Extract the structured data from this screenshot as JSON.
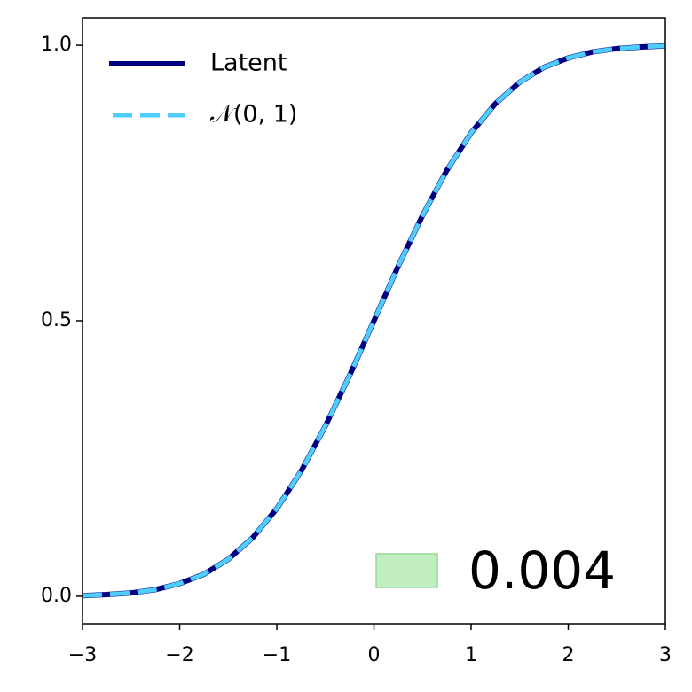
{
  "chart_data": {
    "type": "line",
    "x": [
      -3,
      -2.75,
      -2.5,
      -2.25,
      -2,
      -1.75,
      -1.5,
      -1.25,
      -1,
      -0.75,
      -0.5,
      -0.25,
      0,
      0.25,
      0.5,
      0.75,
      1,
      1.25,
      1.5,
      1.75,
      2,
      2.25,
      2.5,
      2.75,
      3
    ],
    "series": [
      {
        "name": "Latent",
        "color": "#000080",
        "dash": false,
        "values": [
          0.001,
          0.003,
          0.006,
          0.012,
          0.023,
          0.04,
          0.067,
          0.106,
          0.159,
          0.227,
          0.309,
          0.401,
          0.5,
          0.599,
          0.691,
          0.773,
          0.841,
          0.894,
          0.933,
          0.96,
          0.977,
          0.988,
          0.994,
          0.997,
          0.999
        ]
      },
      {
        "name": "𝒩(0, 1)",
        "color": "#4fcdfd",
        "dash": true,
        "values": [
          0.001,
          0.003,
          0.006,
          0.012,
          0.023,
          0.04,
          0.067,
          0.106,
          0.159,
          0.227,
          0.309,
          0.401,
          0.5,
          0.599,
          0.691,
          0.773,
          0.841,
          0.894,
          0.933,
          0.96,
          0.977,
          0.988,
          0.994,
          0.997,
          0.999
        ]
      }
    ],
    "xlim": [
      -3,
      3
    ],
    "ylim": [
      -0.05,
      1.05
    ],
    "xticks": [
      {
        "value": -3,
        "label": "−3"
      },
      {
        "value": -2,
        "label": "−2"
      },
      {
        "value": -1,
        "label": "−1"
      },
      0,
      1,
      2,
      3
    ],
    "yticks": [
      {
        "value": 0,
        "label": "0.0"
      },
      {
        "value": 0.5,
        "label": "0.5"
      },
      {
        "value": 1,
        "label": "1.0"
      }
    ],
    "legend_loc": "upper left",
    "annotation": {
      "text": "0.004",
      "color": "#c2efc2"
    }
  }
}
